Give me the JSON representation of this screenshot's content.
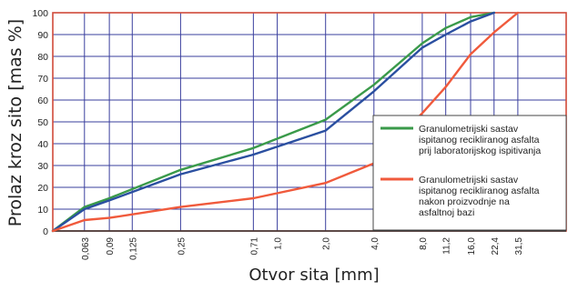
{
  "chart_data": {
    "type": "line",
    "xlabel": "Otvor sita [mm]",
    "ylabel": "Prolaz kroz sito [mas %]",
    "ylim": [
      0,
      100
    ],
    "yticks": [
      "0",
      "10",
      "20",
      "30",
      "40",
      "50",
      "60",
      "70",
      "80",
      "90",
      "100"
    ],
    "xscale": "log",
    "xticks": [
      "0,063",
      "0,09",
      "0,125",
      "0,25",
      "0,71",
      "1,0",
      "2,0",
      "4,0",
      "8,0",
      "11,2",
      "16,0",
      "22,4",
      "31,5"
    ],
    "grid": true,
    "legend_position": "right",
    "series": [
      {
        "name": "Granulometrijski sastav ispitanog recikliranog asfalta prij laboratorijskog ispitivanja",
        "color": "#3a9a4a",
        "points": [
          [
            0.04,
            0
          ],
          [
            0.063,
            11
          ],
          [
            0.09,
            15
          ],
          [
            0.25,
            28
          ],
          [
            0.71,
            38
          ],
          [
            2.0,
            51
          ],
          [
            4.0,
            67
          ],
          [
            8.0,
            86
          ],
          [
            11.2,
            93
          ],
          [
            16.0,
            98
          ],
          [
            22.4,
            100
          ]
        ]
      },
      {
        "name": "",
        "color": "#2a4fa0",
        "points": [
          [
            0.04,
            0
          ],
          [
            0.063,
            10
          ],
          [
            0.09,
            14
          ],
          [
            0.25,
            26
          ],
          [
            0.71,
            35
          ],
          [
            2.0,
            46
          ],
          [
            4.0,
            64
          ],
          [
            8.0,
            84
          ],
          [
            11.2,
            90
          ],
          [
            16.0,
            96
          ],
          [
            22.4,
            100
          ]
        ]
      },
      {
        "name": "Granulometrijski sastav ispitanog recikliranog asfalta nakon proizvodnje na asfaltnoj bazi",
        "color": "#f05a3c",
        "points": [
          [
            0.04,
            0
          ],
          [
            0.063,
            5
          ],
          [
            0.09,
            6
          ],
          [
            0.25,
            11
          ],
          [
            0.71,
            15
          ],
          [
            2.0,
            22
          ],
          [
            4.0,
            31
          ],
          [
            8.0,
            54
          ],
          [
            11.2,
            66
          ],
          [
            16.0,
            81
          ],
          [
            22.4,
            91
          ],
          [
            31.5,
            100
          ]
        ]
      }
    ],
    "legend": [
      {
        "lines": [
          "Granulometrijski sastav",
          "ispitanog recikliranog asfalta",
          "prij laboratorijskog ispitivanja"
        ],
        "color": "#3a9a4a"
      },
      {
        "lines": [
          "Granulometrijski sastav",
          "ispitanog recikliranog asfalta",
          "nakon proizvodnje na",
          "asfaltnoj bazi"
        ],
        "color": "#f05a3c"
      }
    ],
    "colors": {
      "grid": "#3a3f9e",
      "frame": "#d04a3a",
      "background": "#ffffff"
    }
  }
}
